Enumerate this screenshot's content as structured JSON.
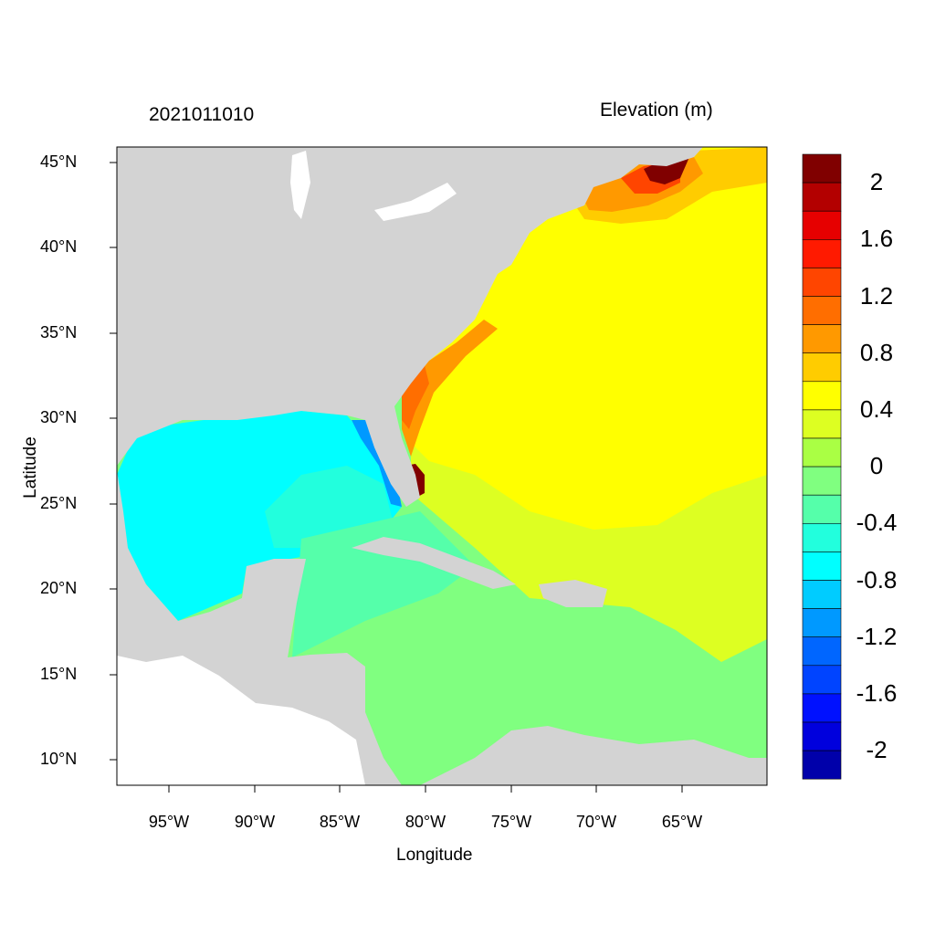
{
  "plot": {
    "title_left": "2021011010",
    "title_right": "Elevation (m)",
    "xlabel": "Longitude",
    "ylabel": "Latitude",
    "x_ticks": [
      "95°W",
      "90°W",
      "85°W",
      "80°W",
      "75°W",
      "70°W",
      "65°W"
    ],
    "y_ticks": [
      "45°N",
      "40°N",
      "35°N",
      "30°N",
      "25°N",
      "20°N",
      "15°N",
      "10°N"
    ],
    "lon_range": [
      -98,
      -60
    ],
    "lat_range": [
      8.5,
      45.9
    ]
  },
  "colorbar": {
    "labels": [
      "2",
      "1.6",
      "1.2",
      "0.8",
      "0.4",
      "0",
      "-0.4",
      "-0.8",
      "-1.2",
      "-1.6",
      "-2"
    ],
    "levels": [
      2.0,
      1.8,
      1.6,
      1.4,
      1.2,
      1.0,
      0.8,
      0.6,
      0.4,
      0.2,
      0.0,
      -0.2,
      -0.4,
      -0.6,
      -0.8,
      -1.0,
      -1.2,
      -1.4,
      -1.6,
      -1.8,
      -2.0
    ],
    "colors": [
      "#800000",
      "#b30000",
      "#e60000",
      "#ff1a00",
      "#ff4500",
      "#ff6e00",
      "#ff9900",
      "#ffcc00",
      "#ffff00",
      "#ddff22",
      "#aaff44",
      "#80ff80",
      "#55ffaa",
      "#22ffdd",
      "#00ffff",
      "#00ccff",
      "#0099ff",
      "#0066ff",
      "#0044ff",
      "#0011ff",
      "#0000dd",
      "#0000aa"
    ]
  },
  "colors": {
    "land": "#d3d3d3",
    "missing": "#ffffff"
  }
}
